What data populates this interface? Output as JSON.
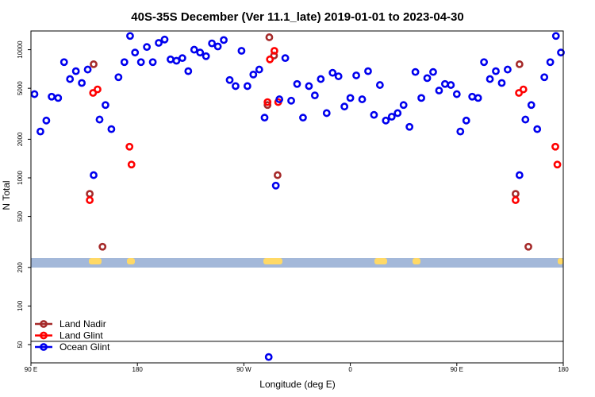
{
  "colors": {
    "land_nadir": "#a52a2a",
    "land_glint": "#ff0000",
    "ocean_glint": "#0000ee",
    "land_band": "#ffd966",
    "ocean_band": "#a3b8d9"
  },
  "chart_data": {
    "type": "scatter",
    "title": "40S-35S December (Ver 11.1_late)   2019-01-01 to 2023-04-30",
    "xlabel": "Longitude (deg E)",
    "ylabel": "N Total",
    "yscale": "log",
    "xlim": [
      90,
      540
    ],
    "ylim": [
      36,
      14000
    ],
    "x_ticks": [
      {
        "value": 90,
        "label": "90 E"
      },
      {
        "value": 180,
        "label": "180"
      },
      {
        "value": 270,
        "label": "90 W"
      },
      {
        "value": 360,
        "label": "0"
      },
      {
        "value": 450,
        "label": "90 E"
      },
      {
        "value": 540,
        "label": "180"
      }
    ],
    "y_ticks": [
      {
        "value": 50,
        "label": "50"
      },
      {
        "value": 100,
        "label": "100"
      },
      {
        "value": 200,
        "label": "200"
      },
      {
        "value": 500,
        "label": "500"
      },
      {
        "value": 1000,
        "label": "1000"
      },
      {
        "value": 2000,
        "label": "2000"
      },
      {
        "value": 5000,
        "label": "5000"
      },
      {
        "value": 10000,
        "label": "10000"
      }
    ],
    "reference_line_y": 53,
    "legend": {
      "placement": "bottom-left"
    },
    "series": [
      {
        "name": "Land Nadir",
        "color_key": "land_nadir",
        "points": [
          [
            139.7,
            750
          ],
          [
            143.0,
            7700
          ],
          [
            150.5,
            290
          ],
          [
            290.0,
            3700
          ],
          [
            291.5,
            12500
          ],
          [
            295.5,
            9000
          ],
          [
            298.5,
            1050
          ],
          [
            499.7,
            750
          ],
          [
            503.0,
            7700
          ],
          [
            510.5,
            290
          ]
        ]
      },
      {
        "name": "Land Glint",
        "color_key": "land_glint",
        "points": [
          [
            139.7,
            670
          ],
          [
            142.5,
            4600
          ],
          [
            146.3,
            4900
          ],
          [
            173.3,
            1750
          ],
          [
            175.0,
            1270
          ],
          [
            290.0,
            3900
          ],
          [
            292.0,
            8400
          ],
          [
            295.8,
            9800
          ],
          [
            299.0,
            3900
          ],
          [
            499.7,
            670
          ],
          [
            502.5,
            4600
          ],
          [
            506.3,
            4900
          ],
          [
            533.3,
            1750
          ],
          [
            535.0,
            1270
          ]
        ]
      },
      {
        "name": "Ocean Glint",
        "color_key": "ocean_glint",
        "points": [
          [
            93.0,
            4500
          ],
          [
            98.0,
            2300
          ],
          [
            103.0,
            2800
          ],
          [
            107.5,
            4300
          ],
          [
            113.0,
            4200
          ],
          [
            118.0,
            8000
          ],
          [
            123.0,
            5900
          ],
          [
            128.0,
            6800
          ],
          [
            133.0,
            5500
          ],
          [
            138.0,
            7000
          ],
          [
            143.0,
            1050
          ],
          [
            148.0,
            2850
          ],
          [
            153.0,
            3700
          ],
          [
            158.0,
            2400
          ],
          [
            164.0,
            6100
          ],
          [
            169.0,
            8000
          ],
          [
            173.8,
            12800
          ],
          [
            178.0,
            9500
          ],
          [
            183.0,
            8000
          ],
          [
            188.0,
            10500
          ],
          [
            193.0,
            8000
          ],
          [
            198.0,
            11300
          ],
          [
            203.0,
            12000
          ],
          [
            208.0,
            8400
          ],
          [
            213.0,
            8200
          ],
          [
            218.0,
            8600
          ],
          [
            223.0,
            6800
          ],
          [
            228.0,
            10000
          ],
          [
            233.0,
            9500
          ],
          [
            238.0,
            8900
          ],
          [
            243.0,
            11200
          ],
          [
            248.0,
            10600
          ],
          [
            253.0,
            11900
          ],
          [
            258.0,
            5800
          ],
          [
            263.0,
            5200
          ],
          [
            268.0,
            9800
          ],
          [
            273.0,
            5200
          ],
          [
            278.0,
            6400
          ],
          [
            283.0,
            7000
          ],
          [
            287.5,
            2950
          ],
          [
            291.0,
            40
          ],
          [
            297.0,
            870
          ],
          [
            300.0,
            4100
          ],
          [
            305.0,
            8600
          ],
          [
            310.0,
            4000
          ],
          [
            315.0,
            5400
          ],
          [
            320.0,
            2950
          ],
          [
            325.0,
            5200
          ],
          [
            330.0,
            4400
          ],
          [
            335.0,
            5900
          ],
          [
            340.0,
            3200
          ],
          [
            345.0,
            6600
          ],
          [
            350.0,
            6200
          ],
          [
            355.0,
            3600
          ],
          [
            360.0,
            4200
          ],
          [
            365.0,
            6300
          ],
          [
            370.0,
            4100
          ],
          [
            375.0,
            6800
          ],
          [
            380.0,
            3100
          ],
          [
            385.0,
            5300
          ],
          [
            390.0,
            2800
          ],
          [
            395.0,
            3000
          ],
          [
            400.0,
            3200
          ],
          [
            405.0,
            3700
          ],
          [
            410.0,
            2500
          ],
          [
            415.0,
            6700
          ],
          [
            420.0,
            4200
          ],
          [
            425.0,
            6000
          ],
          [
            430.0,
            6700
          ],
          [
            435.0,
            4800
          ],
          [
            440.0,
            5400
          ],
          [
            445.0,
            5300
          ],
          [
            450.0,
            4500
          ],
          [
            453.0,
            2300
          ],
          [
            458.0,
            2800
          ],
          [
            463.0,
            4300
          ],
          [
            468.0,
            4200
          ],
          [
            473.0,
            8000
          ],
          [
            478.0,
            5900
          ],
          [
            483.0,
            6800
          ],
          [
            488.0,
            5500
          ],
          [
            493.0,
            7000
          ],
          [
            503.0,
            1050
          ],
          [
            508.0,
            2850
          ],
          [
            513.0,
            3700
          ],
          [
            518.0,
            2400
          ],
          [
            524.0,
            6100
          ],
          [
            529.0,
            8000
          ],
          [
            533.8,
            12800
          ],
          [
            538.0,
            9500
          ]
        ]
      }
    ]
  }
}
